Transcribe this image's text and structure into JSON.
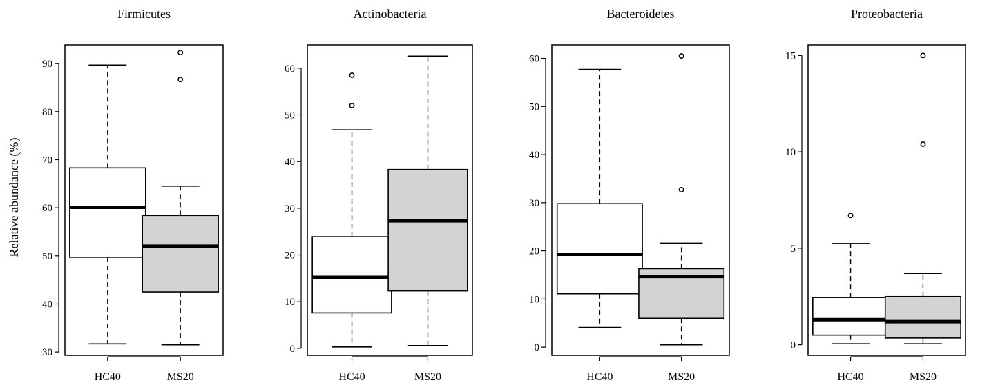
{
  "figure": {
    "ylabel": "Relative abundance (%)"
  },
  "colors": {
    "HC40": "#ffffff",
    "MS20": "#d3d3d3",
    "stroke": "#000000"
  },
  "chart_data": [
    {
      "type": "box",
      "title": "Firmicutes",
      "categories": [
        "HC40",
        "MS20"
      ],
      "ylim": [
        29.3,
        93.9
      ],
      "yticks": [
        30,
        40,
        50,
        60,
        70,
        80,
        90
      ],
      "boxes": [
        {
          "group": "HC40",
          "whisker_low": 31.7,
          "q1": 49.7,
          "median": 60.1,
          "q3": 68.3,
          "whisker_high": 89.7,
          "outliers": []
        },
        {
          "group": "MS20",
          "whisker_low": 31.5,
          "q1": 42.5,
          "median": 52.0,
          "q3": 58.4,
          "whisker_high": 64.5,
          "outliers": [
            86.7,
            92.3
          ]
        }
      ]
    },
    {
      "type": "box",
      "title": "Actinobacteria",
      "categories": [
        "HC40",
        "MS20"
      ],
      "ylim": [
        -1.5,
        65.0
      ],
      "yticks": [
        0,
        10,
        20,
        30,
        40,
        50,
        60
      ],
      "boxes": [
        {
          "group": "HC40",
          "whisker_low": 0.3,
          "q1": 7.6,
          "median": 15.2,
          "q3": 23.9,
          "whisker_high": 46.8,
          "outliers": [
            52.0,
            58.5
          ]
        },
        {
          "group": "MS20",
          "whisker_low": 0.6,
          "q1": 12.3,
          "median": 27.3,
          "q3": 38.3,
          "whisker_high": 62.6,
          "outliers": []
        }
      ]
    },
    {
      "type": "box",
      "title": "Bacteroidetes",
      "categories": [
        "HC40",
        "MS20"
      ],
      "ylim": [
        -1.7,
        62.8
      ],
      "yticks": [
        0,
        10,
        20,
        30,
        40,
        50,
        60
      ],
      "boxes": [
        {
          "group": "HC40",
          "whisker_low": 4.1,
          "q1": 11.1,
          "median": 19.3,
          "q3": 29.8,
          "whisker_high": 57.7,
          "outliers": []
        },
        {
          "group": "MS20",
          "whisker_low": 0.5,
          "q1": 6.0,
          "median": 14.7,
          "q3": 16.3,
          "whisker_high": 21.6,
          "outliers": [
            32.7,
            60.5
          ]
        }
      ]
    },
    {
      "type": "box",
      "title": "Proteobacteria",
      "categories": [
        "HC40",
        "MS20"
      ],
      "ylim": [
        -0.55,
        15.55
      ],
      "yticks": [
        0,
        5,
        10,
        15
      ],
      "boxes": [
        {
          "group": "HC40",
          "whisker_low": 0.05,
          "q1": 0.5,
          "median": 1.3,
          "q3": 2.45,
          "whisker_high": 5.25,
          "outliers": [
            6.7
          ]
        },
        {
          "group": "MS20",
          "whisker_low": 0.05,
          "q1": 0.35,
          "median": 1.2,
          "q3": 2.5,
          "whisker_high": 3.7,
          "outliers": [
            10.4,
            15.0
          ]
        }
      ]
    }
  ]
}
